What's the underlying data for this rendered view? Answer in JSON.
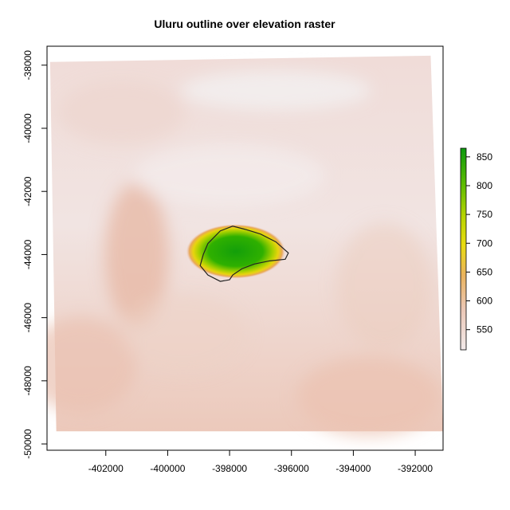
{
  "title": "Uluru outline over elevation raster",
  "colors": {
    "low": "#f2eaea",
    "mid_low": "#e8c3b2",
    "orange": "#eab354",
    "yellow": "#e9dc10",
    "green_light": "#8ccc00",
    "green": "#15a30c",
    "outline": "#222222",
    "frame": "#000000"
  },
  "chart_data": {
    "type": "heatmap",
    "title": "Uluru outline over elevation raster",
    "xlabel": "",
    "ylabel": "",
    "xlim": [
      -403900,
      -391100
    ],
    "ylim": [
      -50200,
      -37400
    ],
    "x_ticks": [
      -402000,
      -400000,
      -398000,
      -396000,
      -394000,
      -392000
    ],
    "x_tick_labels": [
      "-402000",
      "-400000",
      "-398000",
      "-396000",
      "-394000",
      "-392000"
    ],
    "y_ticks": [
      -38000,
      -40000,
      -42000,
      -44000,
      -46000,
      -48000,
      -50000
    ],
    "y_tick_labels": [
      "-38000",
      "-40000",
      "-42000",
      "-44000",
      "-46000",
      "-48000",
      "-50000"
    ],
    "raster_corners": [
      [
        -403800,
        -37900
      ],
      [
        -391500,
        -37700
      ],
      [
        -391100,
        -49600
      ],
      [
        -403600,
        -49600
      ]
    ],
    "peak_center": [
      -397800,
      -43900
    ],
    "outline_polygon": [
      [
        -398700,
        -43650
      ],
      [
        -398300,
        -43250
      ],
      [
        -397900,
        -43100
      ],
      [
        -397500,
        -43200
      ],
      [
        -397000,
        -43350
      ],
      [
        -396500,
        -43600
      ],
      [
        -396100,
        -43950
      ],
      [
        -396200,
        -44150
      ],
      [
        -396700,
        -44200
      ],
      [
        -397200,
        -44300
      ],
      [
        -397600,
        -44450
      ],
      [
        -397900,
        -44650
      ],
      [
        -398000,
        -44800
      ],
      [
        -398300,
        -44850
      ],
      [
        -398700,
        -44650
      ],
      [
        -398950,
        -44350
      ],
      [
        -398850,
        -44000
      ]
    ],
    "legend": {
      "placement": "right",
      "range": [
        515,
        865
      ],
      "ticks": [
        550,
        600,
        650,
        700,
        750,
        800,
        850
      ],
      "tick_labels": [
        "550",
        "600",
        "650",
        "700",
        "750",
        "800",
        "850"
      ]
    }
  }
}
